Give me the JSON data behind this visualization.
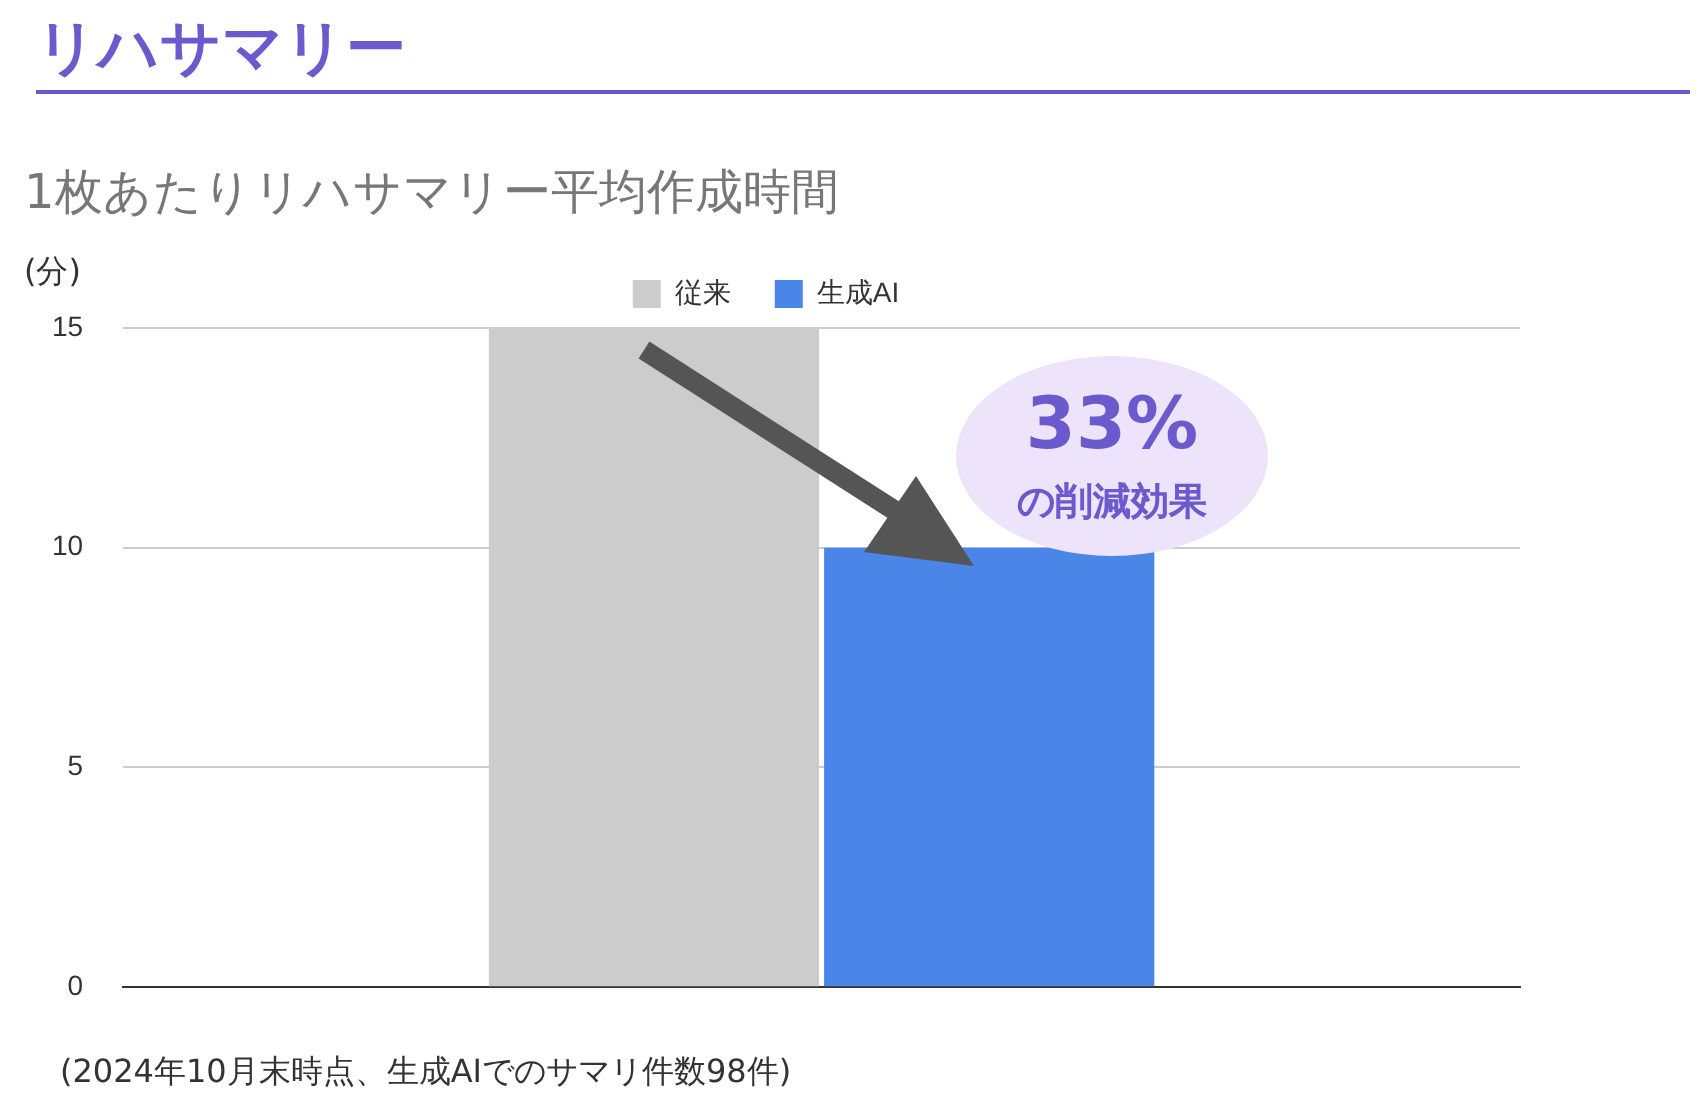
{
  "chart_data": {
    "type": "bar",
    "title": "リハサマリー",
    "subtitle": "1枚あたりリハサマリー平均作成時間",
    "ylabel": "(分)",
    "categories": [
      null
    ],
    "series": [
      {
        "name": "従来",
        "color": "#cccccc",
        "values": [
          15
        ]
      },
      {
        "name": "生成AI",
        "color": "#4a86e8",
        "values": [
          10
        ]
      }
    ],
    "ylim": [
      0,
      15
    ],
    "yticks": [
      0,
      5,
      10,
      15
    ],
    "grid": "y",
    "legend": "top",
    "annotations": [
      "33%",
      "の削減効果",
      "(2024年10月末時点、生成AIでのサマリ件数98件)"
    ]
  }
}
